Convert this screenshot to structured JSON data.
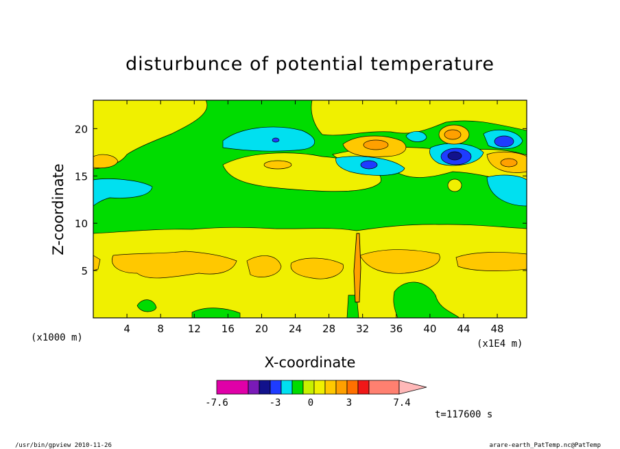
{
  "chart_data": {
    "type": "heatmap",
    "title": "disturbunce of potential temperature",
    "xlabel": "X-coordinate",
    "ylabel": "Z-coordinate",
    "x_unit": "(x1000 m)",
    "x_scale_label": "(x1E4 m)",
    "xlim": [
      0,
      51.5
    ],
    "ylim": [
      0,
      23
    ],
    "x_ticks": [
      4,
      8,
      12,
      16,
      20,
      24,
      28,
      32,
      36,
      40,
      44,
      48
    ],
    "y_ticks": [
      5,
      10,
      15,
      20
    ],
    "colorbar": {
      "labels": [
        "-7.6",
        "-3",
        "0",
        "3",
        "7.4"
      ],
      "colors": [
        "#e000a8",
        "#7a1ab8",
        "#12128c",
        "#1e3cff",
        "#00e0f0",
        "#00dc00",
        "#c8f000",
        "#f0f000",
        "#ffc800",
        "#ffa000",
        "#ff7000",
        "#f01818",
        "#ff8070",
        "#ffb8b8"
      ]
    },
    "time_label": "t=117600 s",
    "features": [
      {
        "level": "0 to 1",
        "x": [
          0,
          51.5
        ],
        "z": [
          0,
          9.5
        ],
        "note": "yellow band near the ground"
      },
      {
        "level": "1 to 2",
        "x": [
          2,
          51.5
        ],
        "z": [
          4.5,
          7
        ],
        "note": "orange band around z=5.5"
      },
      {
        "level": "-1 to 0",
        "x": [
          0,
          51.5
        ],
        "z": [
          9,
          13
        ],
        "note": "green band"
      },
      {
        "level": "-2 to -1",
        "x": [
          15,
          26
        ],
        "z": [
          17.5,
          20.5
        ],
        "note": "cyan cell near z=19"
      },
      {
        "level": "-4 to -3",
        "x": [
          40,
          45
        ],
        "z": [
          16,
          18
        ],
        "note": "blue cell"
      },
      {
        "level": "2 to 3",
        "x": [
          41,
          44
        ],
        "z": [
          18.5,
          20.5
        ],
        "note": "orange cell"
      }
    ]
  },
  "footer": {
    "left": "/usr/bin/gpview  2010-11-26",
    "right": "arare-earth_PatTemp.nc@PatTemp"
  }
}
